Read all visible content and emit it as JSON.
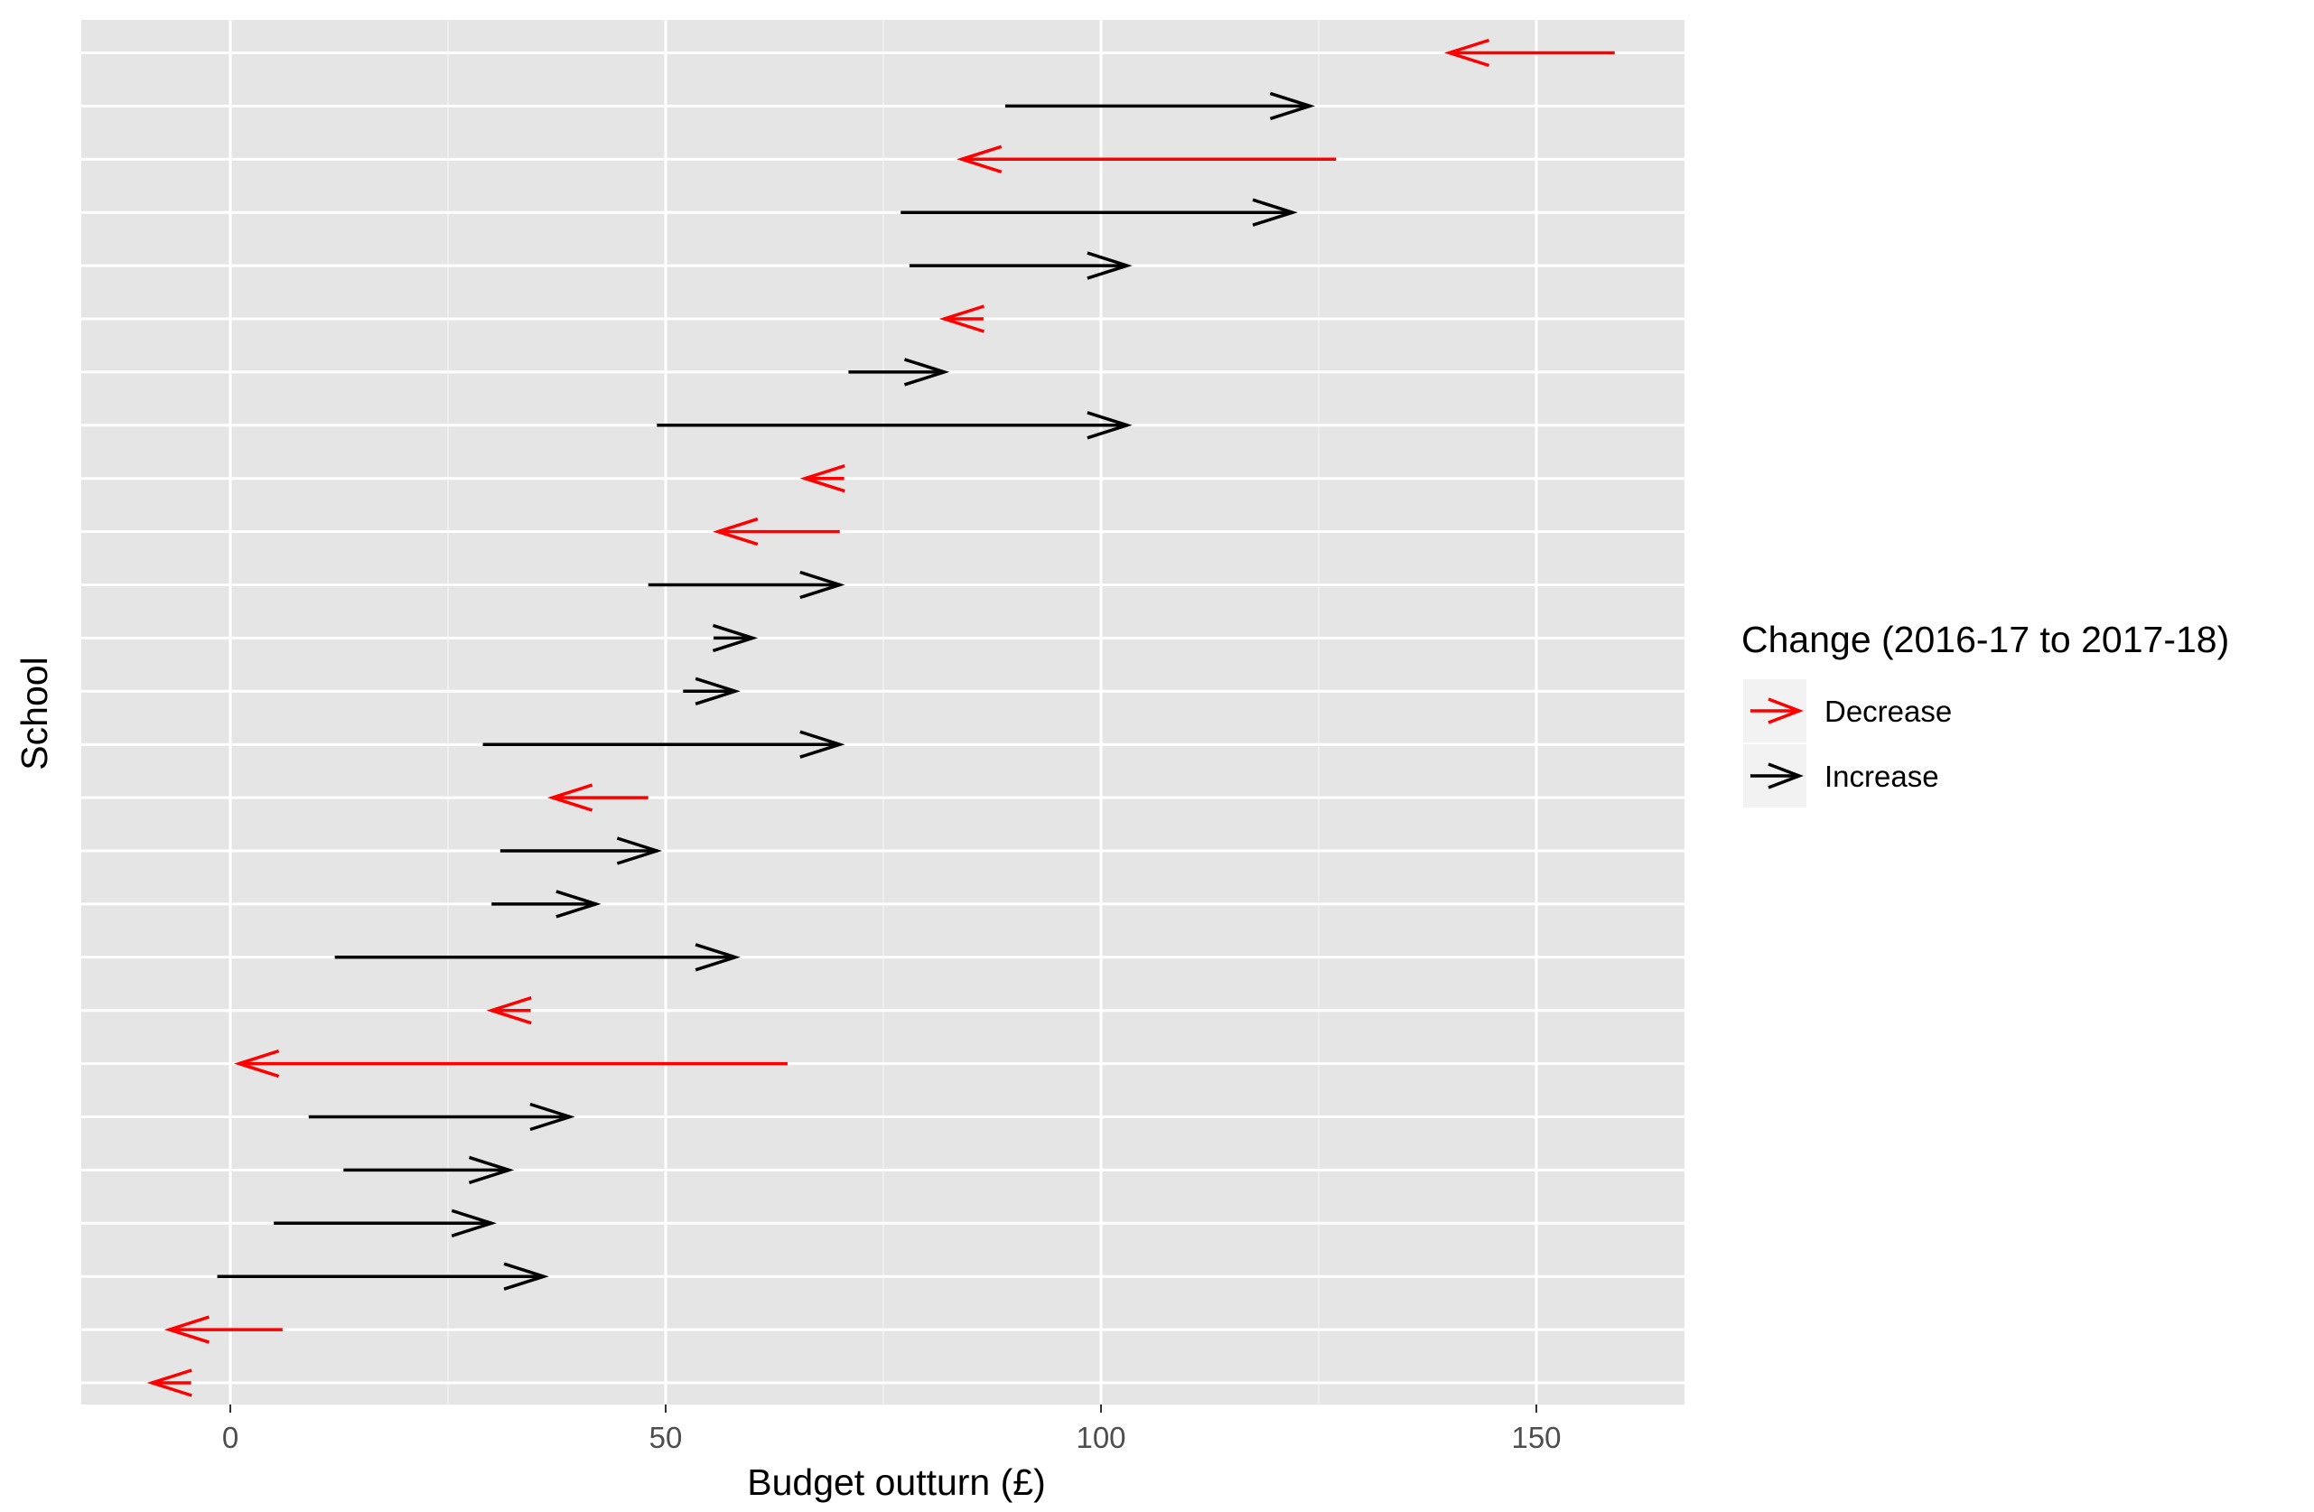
{
  "chart_data": {
    "type": "arrow",
    "xlabel": "Budget outturn (£)",
    "ylabel": "School",
    "xlim": [
      -17,
      168
    ],
    "x_ticks": [
      0,
      50,
      100,
      150
    ],
    "grid": true,
    "legend": {
      "position": "right",
      "title": "Change (2016-17 to 2017-18)",
      "entries": [
        {
          "label": "Decrease",
          "color": "#ff0000"
        },
        {
          "label": "Increase",
          "color": "#000000"
        }
      ]
    },
    "arrows": [
      {
        "from": -4.5,
        "to": -9
      },
      {
        "from": 6,
        "to": -7
      },
      {
        "from": -1.5,
        "to": 36
      },
      {
        "from": 5,
        "to": 30
      },
      {
        "from": 13,
        "to": 32
      },
      {
        "from": 9,
        "to": 39
      },
      {
        "from": 64,
        "to": 1
      },
      {
        "from": 34.5,
        "to": 30
      },
      {
        "from": 12,
        "to": 58
      },
      {
        "from": 30,
        "to": 42
      },
      {
        "from": 31,
        "to": 49
      },
      {
        "from": 48,
        "to": 37
      },
      {
        "from": 29,
        "to": 70
      },
      {
        "from": 52,
        "to": 58
      },
      {
        "from": 55.5,
        "to": 60
      },
      {
        "from": 48,
        "to": 70
      },
      {
        "from": 70,
        "to": 56
      },
      {
        "from": 70.5,
        "to": 66
      },
      {
        "from": 49,
        "to": 103
      },
      {
        "from": 71,
        "to": 82
      },
      {
        "from": 86.5,
        "to": 82
      },
      {
        "from": 78,
        "to": 103
      },
      {
        "from": 77,
        "to": 122
      },
      {
        "from": 127,
        "to": 84
      },
      {
        "from": 89,
        "to": 124
      },
      {
        "from": 159,
        "to": 140
      }
    ]
  },
  "colors": {
    "panel_background": "#e5e5e5",
    "grid_line": "#ffffff",
    "decrease": "#ff0000",
    "increase": "#000000"
  }
}
